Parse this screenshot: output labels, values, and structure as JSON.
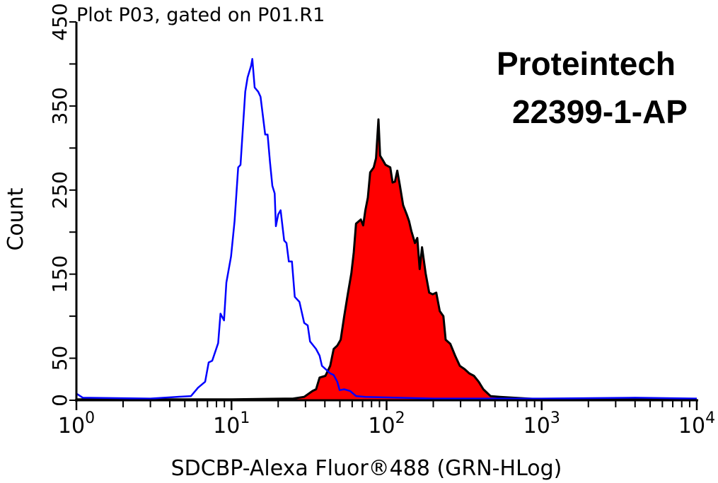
{
  "chart_data": {
    "type": "area",
    "title": "Plot P03, gated on P01.R1",
    "xlabel": "SDCBP-Alexa Fluor®488 (GRN-HLog)",
    "ylabel": "Count",
    "x_scale": "log",
    "xlim": [
      1,
      10000
    ],
    "ylim": [
      0,
      450
    ],
    "x_ticks": [
      {
        "base": "10",
        "exp": "0",
        "value": 1
      },
      {
        "base": "10",
        "exp": "1",
        "value": 10
      },
      {
        "base": "10",
        "exp": "2",
        "value": 100
      },
      {
        "base": "10",
        "exp": "3",
        "value": 1000
      },
      {
        "base": "10",
        "exp": "4",
        "value": 10000
      }
    ],
    "y_tick_values": [
      0,
      50,
      100,
      150,
      200,
      250,
      300,
      350,
      400,
      450
    ],
    "y_tick_labels": [
      "0",
      "50",
      "150",
      "250",
      "350",
      "450"
    ],
    "grid": false,
    "annotations": [
      "Proteintech",
      "22399-1-AP"
    ],
    "colors": {
      "control_line": "#0000ff",
      "sample_fill": "#ff0000",
      "sample_outline": "#000000"
    },
    "series": [
      {
        "style": "blue outline (control)",
        "points": [
          [
            1,
            8
          ],
          [
            1.1,
            3
          ],
          [
            3,
            2
          ],
          [
            4.44,
            4
          ],
          [
            5.48,
            5
          ],
          [
            6.09,
            15
          ],
          [
            6.76,
            22
          ],
          [
            7.13,
            45
          ],
          [
            7.51,
            47
          ],
          [
            8.2,
            68
          ],
          [
            8.49,
            103
          ],
          [
            8.95,
            95
          ],
          [
            9.27,
            140
          ],
          [
            9.93,
            171
          ],
          [
            10.47,
            213
          ],
          [
            11.04,
            277
          ],
          [
            11.43,
            280
          ],
          [
            12.27,
            367
          ],
          [
            12.7,
            384
          ],
          [
            13.39,
            398
          ],
          [
            13.62,
            406
          ],
          [
            14.1,
            372
          ],
          [
            14.86,
            367
          ],
          [
            15.39,
            361
          ],
          [
            16.5,
            316
          ],
          [
            17.09,
            316
          ],
          [
            17.71,
            283
          ],
          [
            18.34,
            255
          ],
          [
            18.99,
            246
          ],
          [
            19.32,
            207
          ],
          [
            20.0,
            221
          ],
          [
            20.73,
            226
          ],
          [
            21.86,
            190
          ],
          [
            22.63,
            187
          ],
          [
            23.43,
            165
          ],
          [
            24.53,
            165
          ],
          [
            25.59,
            123
          ],
          [
            27.43,
            117
          ],
          [
            29.42,
            92
          ],
          [
            31.0,
            89
          ],
          [
            32.1,
            70
          ],
          [
            35.1,
            61
          ],
          [
            37.0,
            53
          ],
          [
            38.3,
            41
          ],
          [
            41.0,
            36
          ],
          [
            43.3,
            32
          ],
          [
            45.6,
            30
          ],
          [
            48.1,
            22
          ],
          [
            49.8,
            12
          ],
          [
            53.3,
            13
          ],
          [
            58.2,
            11
          ],
          [
            63.5,
            5
          ],
          [
            73,
            4
          ],
          [
            200,
            2
          ],
          [
            1000,
            2
          ],
          [
            4000,
            3
          ],
          [
            10000,
            2
          ]
        ]
      },
      {
        "style": "red filled, black outline (SDCBP)",
        "points": [
          [
            1,
            1
          ],
          [
            10,
            1
          ],
          [
            25,
            2
          ],
          [
            29.42,
            4
          ],
          [
            33.3,
            11
          ],
          [
            35.1,
            13
          ],
          [
            37.0,
            27
          ],
          [
            40.3,
            29
          ],
          [
            43.3,
            41
          ],
          [
            45.6,
            61
          ],
          [
            48.1,
            65
          ],
          [
            50.6,
            72
          ],
          [
            53.3,
            100
          ],
          [
            56.2,
            126
          ],
          [
            59.3,
            151
          ],
          [
            61.4,
            176
          ],
          [
            63.5,
            210
          ],
          [
            68.2,
            215
          ],
          [
            70.6,
            208
          ],
          [
            73.0,
            226
          ],
          [
            75.7,
            241
          ],
          [
            78.4,
            271
          ],
          [
            82.6,
            277
          ],
          [
            85.5,
            288
          ],
          [
            88.6,
            334
          ],
          [
            90.8,
            291
          ],
          [
            95.0,
            285
          ],
          [
            98.4,
            280
          ],
          [
            105.6,
            277
          ],
          [
            109.3,
            259
          ],
          [
            113.2,
            260
          ],
          [
            117.2,
            273
          ],
          [
            121.4,
            257
          ],
          [
            127.9,
            232
          ],
          [
            134.9,
            221
          ],
          [
            139.6,
            213
          ],
          [
            144.5,
            201
          ],
          [
            152.4,
            187
          ],
          [
            157.8,
            193
          ],
          [
            163.4,
            156
          ],
          [
            169.3,
            182
          ],
          [
            178.5,
            151
          ],
          [
            188.2,
            128
          ],
          [
            198.3,
            126
          ],
          [
            209.1,
            128
          ],
          [
            220.4,
            106
          ],
          [
            232.3,
            100
          ],
          [
            240.4,
            72
          ],
          [
            257.6,
            67
          ],
          [
            276.6,
            53
          ],
          [
            296.6,
            41
          ],
          [
            318.4,
            37
          ],
          [
            341.3,
            32
          ],
          [
            365.9,
            29
          ],
          [
            392.6,
            22
          ],
          [
            420.7,
            13
          ],
          [
            467.7,
            5
          ],
          [
            538,
            4
          ],
          [
            1000,
            1
          ],
          [
            10000,
            1
          ]
        ]
      }
    ]
  }
}
